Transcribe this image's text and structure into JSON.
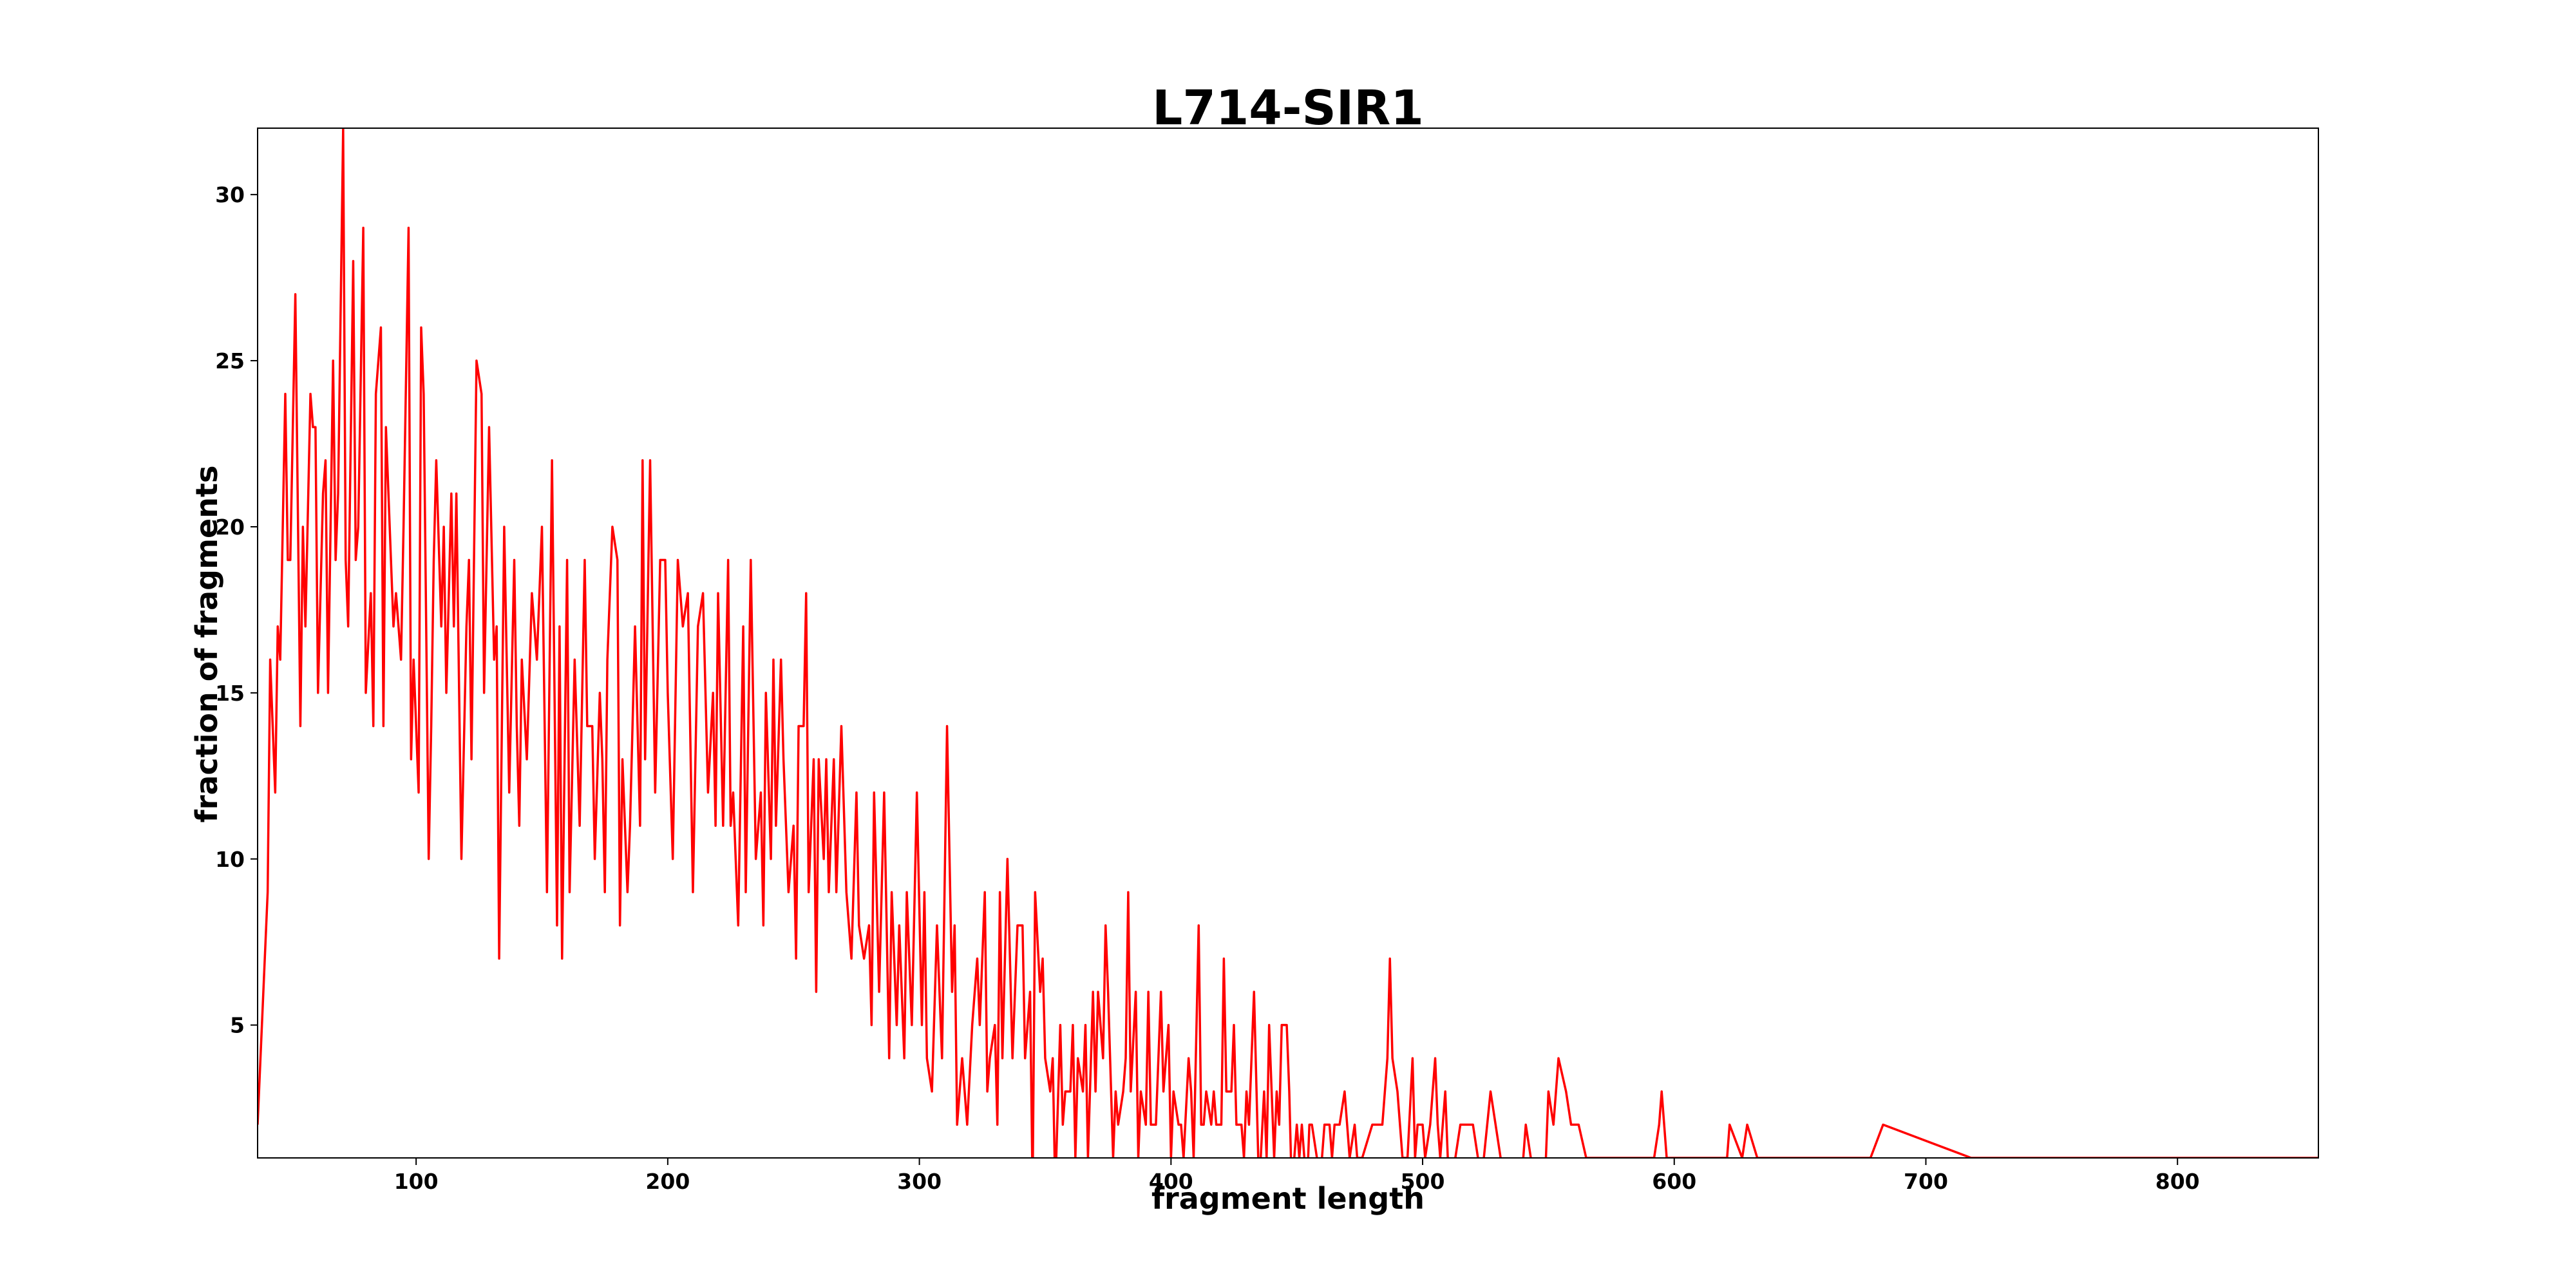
{
  "chart_data": {
    "type": "line",
    "title": "L714-SIR1",
    "xlabel": "fragment length",
    "ylabel": "fraction of fragments",
    "x": [
      37,
      41,
      42,
      44,
      45,
      46,
      48,
      49,
      50,
      52,
      54,
      55,
      56,
      58,
      59,
      60,
      61,
      63,
      64,
      65,
      67,
      68,
      69,
      71,
      72,
      73,
      75,
      76,
      77,
      79,
      80,
      82,
      83,
      84,
      86,
      87,
      88,
      90,
      91,
      92,
      94,
      95,
      97,
      98,
      99,
      101,
      102,
      103,
      105,
      106,
      107,
      108,
      110,
      111,
      112,
      114,
      115,
      116,
      118,
      120,
      121,
      122,
      124,
      126,
      127,
      129,
      131,
      132,
      133,
      135,
      137,
      139,
      140,
      141,
      142,
      144,
      146,
      148,
      150,
      152,
      154,
      156,
      157,
      158,
      160,
      161,
      163,
      165,
      167,
      168,
      170,
      171,
      173,
      174,
      175,
      176,
      178,
      180,
      181,
      182,
      184,
      185,
      187,
      189,
      190,
      191,
      193,
      195,
      197,
      199,
      200,
      202,
      204,
      206,
      208,
      210,
      212,
      214,
      216,
      218,
      219,
      220,
      222,
      224,
      225,
      226,
      228,
      230,
      231,
      233,
      235,
      237,
      238,
      239,
      241,
      242,
      243,
      245,
      246,
      248,
      250,
      251,
      252,
      254,
      255,
      256,
      258,
      259,
      260,
      262,
      263,
      264,
      266,
      267,
      269,
      271,
      273,
      275,
      276,
      278,
      280,
      281,
      282,
      284,
      286,
      288,
      289,
      291,
      292,
      294,
      295,
      297,
      299,
      301,
      302,
      303,
      305,
      307,
      308,
      309,
      311,
      313,
      314,
      315,
      317,
      319,
      321,
      323,
      324,
      326,
      327,
      328,
      330,
      331,
      332,
      333,
      335,
      337,
      339,
      341,
      342,
      344,
      345,
      346,
      348,
      349,
      350,
      352,
      353,
      354,
      356,
      357,
      358,
      360,
      361,
      362,
      363,
      365,
      366,
      367,
      369,
      370,
      371,
      373,
      374,
      375,
      377,
      378,
      379,
      381,
      382,
      383,
      384,
      386,
      387,
      388,
      390,
      391,
      392,
      394,
      395,
      396,
      397,
      399,
      400,
      401,
      403,
      404,
      405,
      407,
      408,
      409,
      411,
      412,
      413,
      414,
      416,
      417,
      418,
      420,
      421,
      422,
      424,
      425,
      426,
      428,
      429,
      430,
      431,
      433,
      434,
      435,
      437,
      438,
      439,
      441,
      442,
      443,
      444,
      446,
      447,
      448,
      450,
      451,
      452,
      454,
      455,
      456,
      458,
      459,
      461,
      463,
      464,
      465,
      467,
      469,
      470,
      471,
      473,
      474,
      476,
      480,
      484,
      486,
      487,
      488,
      490,
      492,
      494,
      496,
      497,
      498,
      500,
      501,
      503,
      505,
      506,
      507,
      509,
      510,
      511,
      515,
      520,
      522,
      523,
      527,
      531,
      532,
      539,
      541,
      543,
      545,
      549,
      550,
      552,
      554,
      557,
      559,
      562,
      565,
      569,
      592,
      594,
      595,
      597,
      614,
      621,
      622,
      627,
      629,
      633,
      640,
      678,
      683,
      718,
      856
    ],
    "series": [
      {
        "name": "L714-SIR1",
        "color": "#ff0000",
        "values": [
          2,
          9,
          16,
          12,
          17,
          16,
          24,
          19,
          19,
          27,
          14,
          20,
          17,
          24,
          23,
          23,
          15,
          21,
          22,
          15,
          25,
          19,
          21,
          32,
          19,
          17,
          28,
          19,
          20,
          29,
          15,
          18,
          14,
          24,
          26,
          14,
          23,
          19,
          17,
          18,
          16,
          20,
          29,
          13,
          16,
          12,
          26,
          24,
          10,
          14,
          19,
          22,
          17,
          20,
          15,
          21,
          17,
          21,
          10,
          17,
          19,
          13,
          25,
          24,
          15,
          23,
          16,
          17,
          7,
          20,
          12,
          19,
          14,
          11,
          16,
          13,
          18,
          16,
          20,
          9,
          22,
          8,
          17,
          7,
          19,
          9,
          16,
          11,
          19,
          14,
          14,
          10,
          15,
          13,
          9,
          16,
          20,
          19,
          8,
          13,
          9,
          11,
          17,
          11,
          22,
          13,
          22,
          12,
          19,
          19,
          15,
          10,
          19,
          17,
          18,
          9,
          17,
          18,
          12,
          15,
          11,
          18,
          11,
          19,
          11,
          12,
          8,
          17,
          9,
          19,
          10,
          12,
          8,
          15,
          10,
          16,
          11,
          16,
          13,
          9,
          11,
          7,
          14,
          14,
          18,
          9,
          13,
          6,
          13,
          10,
          13,
          9,
          13,
          9,
          14,
          9,
          7,
          12,
          8,
          7,
          8,
          5,
          12,
          6,
          12,
          4,
          9,
          5,
          8,
          4,
          9,
          5,
          12,
          5,
          9,
          4,
          3,
          8,
          6,
          4,
          14,
          6,
          8,
          2,
          4,
          2,
          5,
          7,
          5,
          9,
          3,
          4,
          5,
          2,
          9,
          4,
          10,
          4,
          8,
          8,
          4,
          6,
          0,
          9,
          6,
          7,
          4,
          3,
          4,
          0,
          5,
          2,
          3,
          3,
          5,
          1,
          4,
          3,
          5,
          1,
          6,
          3,
          6,
          4,
          8,
          6,
          1,
          3,
          2,
          3,
          4,
          9,
          3,
          6,
          1,
          3,
          2,
          6,
          2,
          2,
          4,
          6,
          3,
          5,
          1,
          3,
          2,
          2,
          1,
          4,
          3,
          1,
          8,
          2,
          2,
          3,
          2,
          3,
          2,
          2,
          7,
          3,
          3,
          5,
          2,
          2,
          1,
          3,
          2,
          6,
          3,
          0,
          3,
          1,
          5,
          1,
          3,
          2,
          5,
          5,
          3,
          0,
          2,
          1,
          2,
          0,
          2,
          2,
          1,
          0,
          2,
          2,
          1,
          2,
          2,
          3,
          2,
          1,
          2,
          1,
          1,
          2,
          2,
          4,
          7,
          4,
          3,
          1,
          1,
          4,
          1,
          2,
          2,
          1,
          2,
          4,
          2,
          1,
          3,
          1,
          0,
          2,
          2,
          1,
          0,
          3,
          1,
          0,
          0,
          2,
          1,
          0,
          1,
          3,
          2,
          4,
          3,
          2,
          2,
          1,
          1,
          1,
          2,
          3,
          1,
          1,
          1,
          2,
          1,
          2,
          1,
          1,
          1,
          2,
          1,
          1
        ]
      }
    ],
    "xlim": [
      37,
      856
    ],
    "ylim": [
      1,
      32
    ],
    "xticks": [
      100,
      200,
      300,
      400,
      500,
      600,
      700,
      800
    ],
    "yticks": [
      5,
      10,
      15,
      20,
      25,
      30
    ]
  }
}
